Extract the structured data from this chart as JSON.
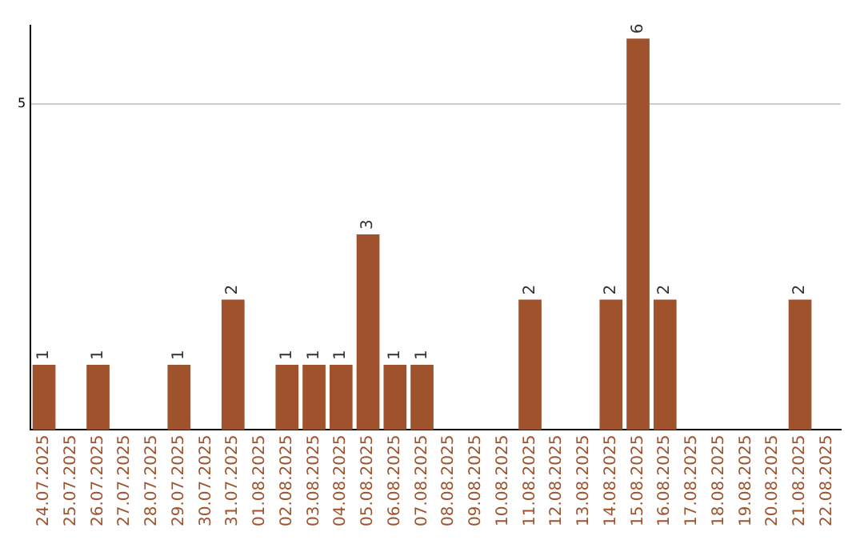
{
  "chart_data": {
    "type": "bar",
    "categories": [
      "24.07.2025",
      "25.07.2025",
      "26.07.2025",
      "27.07.2025",
      "28.07.2025",
      "29.07.2025",
      "30.07.2025",
      "31.07.2025",
      "01.08.2025",
      "02.08.2025",
      "03.08.2025",
      "04.08.2025",
      "05.08.2025",
      "06.08.2025",
      "07.08.2025",
      "08.08.2025",
      "09.08.2025",
      "10.08.2025",
      "11.08.2025",
      "12.08.2025",
      "13.08.2025",
      "14.08.2025",
      "15.08.2025",
      "16.08.2025",
      "17.08.2025",
      "18.08.2025",
      "19.08.2025",
      "20.08.2025",
      "21.08.2025",
      "22.08.2025"
    ],
    "values": [
      1,
      0,
      1,
      0,
      0,
      1,
      0,
      2,
      0,
      1,
      1,
      1,
      3,
      1,
      1,
      0,
      0,
      0,
      2,
      0,
      0,
      2,
      6,
      2,
      0,
      0,
      0,
      0,
      2,
      0
    ],
    "value_labels": [
      "1",
      null,
      "1",
      null,
      null,
      "1",
      null,
      "2",
      null,
      "1",
      "1",
      "1",
      "3",
      "1",
      "1",
      null,
      null,
      null,
      "2",
      null,
      null,
      "2",
      "6",
      "2",
      null,
      null,
      null,
      null,
      "2",
      null
    ],
    "color": "#a0522d",
    "ylim": [
      0,
      6.2
    ],
    "yticks": [
      5
    ],
    "grid": "y",
    "legend": false
  }
}
